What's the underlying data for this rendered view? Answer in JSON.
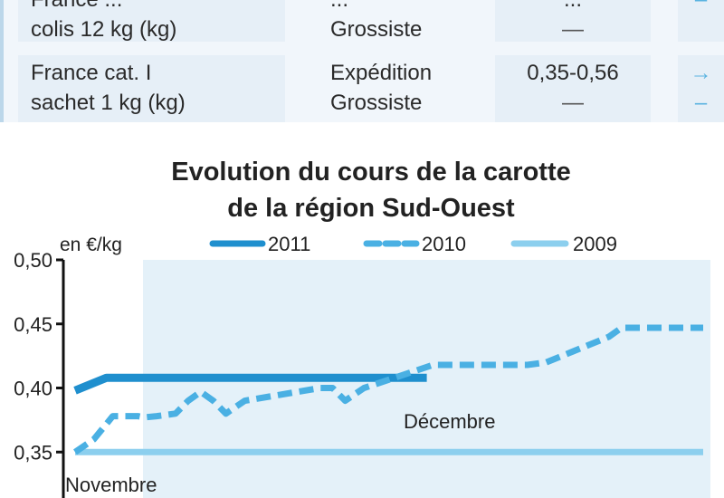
{
  "table": {
    "rows": [
      {
        "product_line1": "France ...",
        "product_line2": "colis 12 kg (kg)",
        "stage_line1": "...",
        "stage_line2": "Grossiste",
        "price_line1": "...",
        "price_line2": "—",
        "trend_line1": "",
        "trend_line2": "–"
      },
      {
        "product_line1": "France cat. I",
        "product_line2": "sachet 1 kg (kg)",
        "stage_line1": "Expédition",
        "stage_line2": "Grossiste",
        "price_line1": "0,35-0,56",
        "price_line2": "—",
        "trend_line1": "→",
        "trend_line2": "–"
      }
    ]
  },
  "colors": {
    "y2011": "#1f8fce",
    "y2010": "#4ab0e3",
    "y2009": "#8ccfee",
    "panel": "#e4f1f9",
    "axis": "#111111"
  },
  "chart_data": {
    "type": "line",
    "title_line1": "Evolution du cours de la carotte",
    "title_line2": "de la région Sud-Ouest",
    "ylabel": "en €/kg",
    "ylim": [
      0.3,
      0.5
    ],
    "y_ticks": [
      "0,50",
      "0,45",
      "0,40",
      "0,35"
    ],
    "period_labels": [
      "Novembre",
      "Décembre"
    ],
    "legend": [
      "2011",
      "2010",
      "2009"
    ],
    "x_range": [
      0,
      100
    ],
    "series": [
      {
        "name": "2011",
        "style": "solid",
        "x": [
          0,
          5,
          56
        ],
        "y": [
          0.398,
          0.408,
          0.408
        ]
      },
      {
        "name": "2010",
        "style": "dashed",
        "x": [
          0,
          3,
          6,
          10,
          11,
          13,
          16,
          18,
          20,
          22,
          24,
          27,
          39,
          41,
          43,
          46,
          57,
          72,
          75,
          85,
          87,
          100
        ],
        "y": [
          0.35,
          0.36,
          0.378,
          0.378,
          0.377,
          0.378,
          0.38,
          0.39,
          0.397,
          0.39,
          0.38,
          0.39,
          0.4,
          0.4,
          0.39,
          0.4,
          0.418,
          0.418,
          0.42,
          0.44,
          0.447,
          0.447
        ]
      },
      {
        "name": "2009",
        "style": "solid-light",
        "x": [
          0,
          100
        ],
        "y": [
          0.35,
          0.35
        ]
      }
    ]
  }
}
